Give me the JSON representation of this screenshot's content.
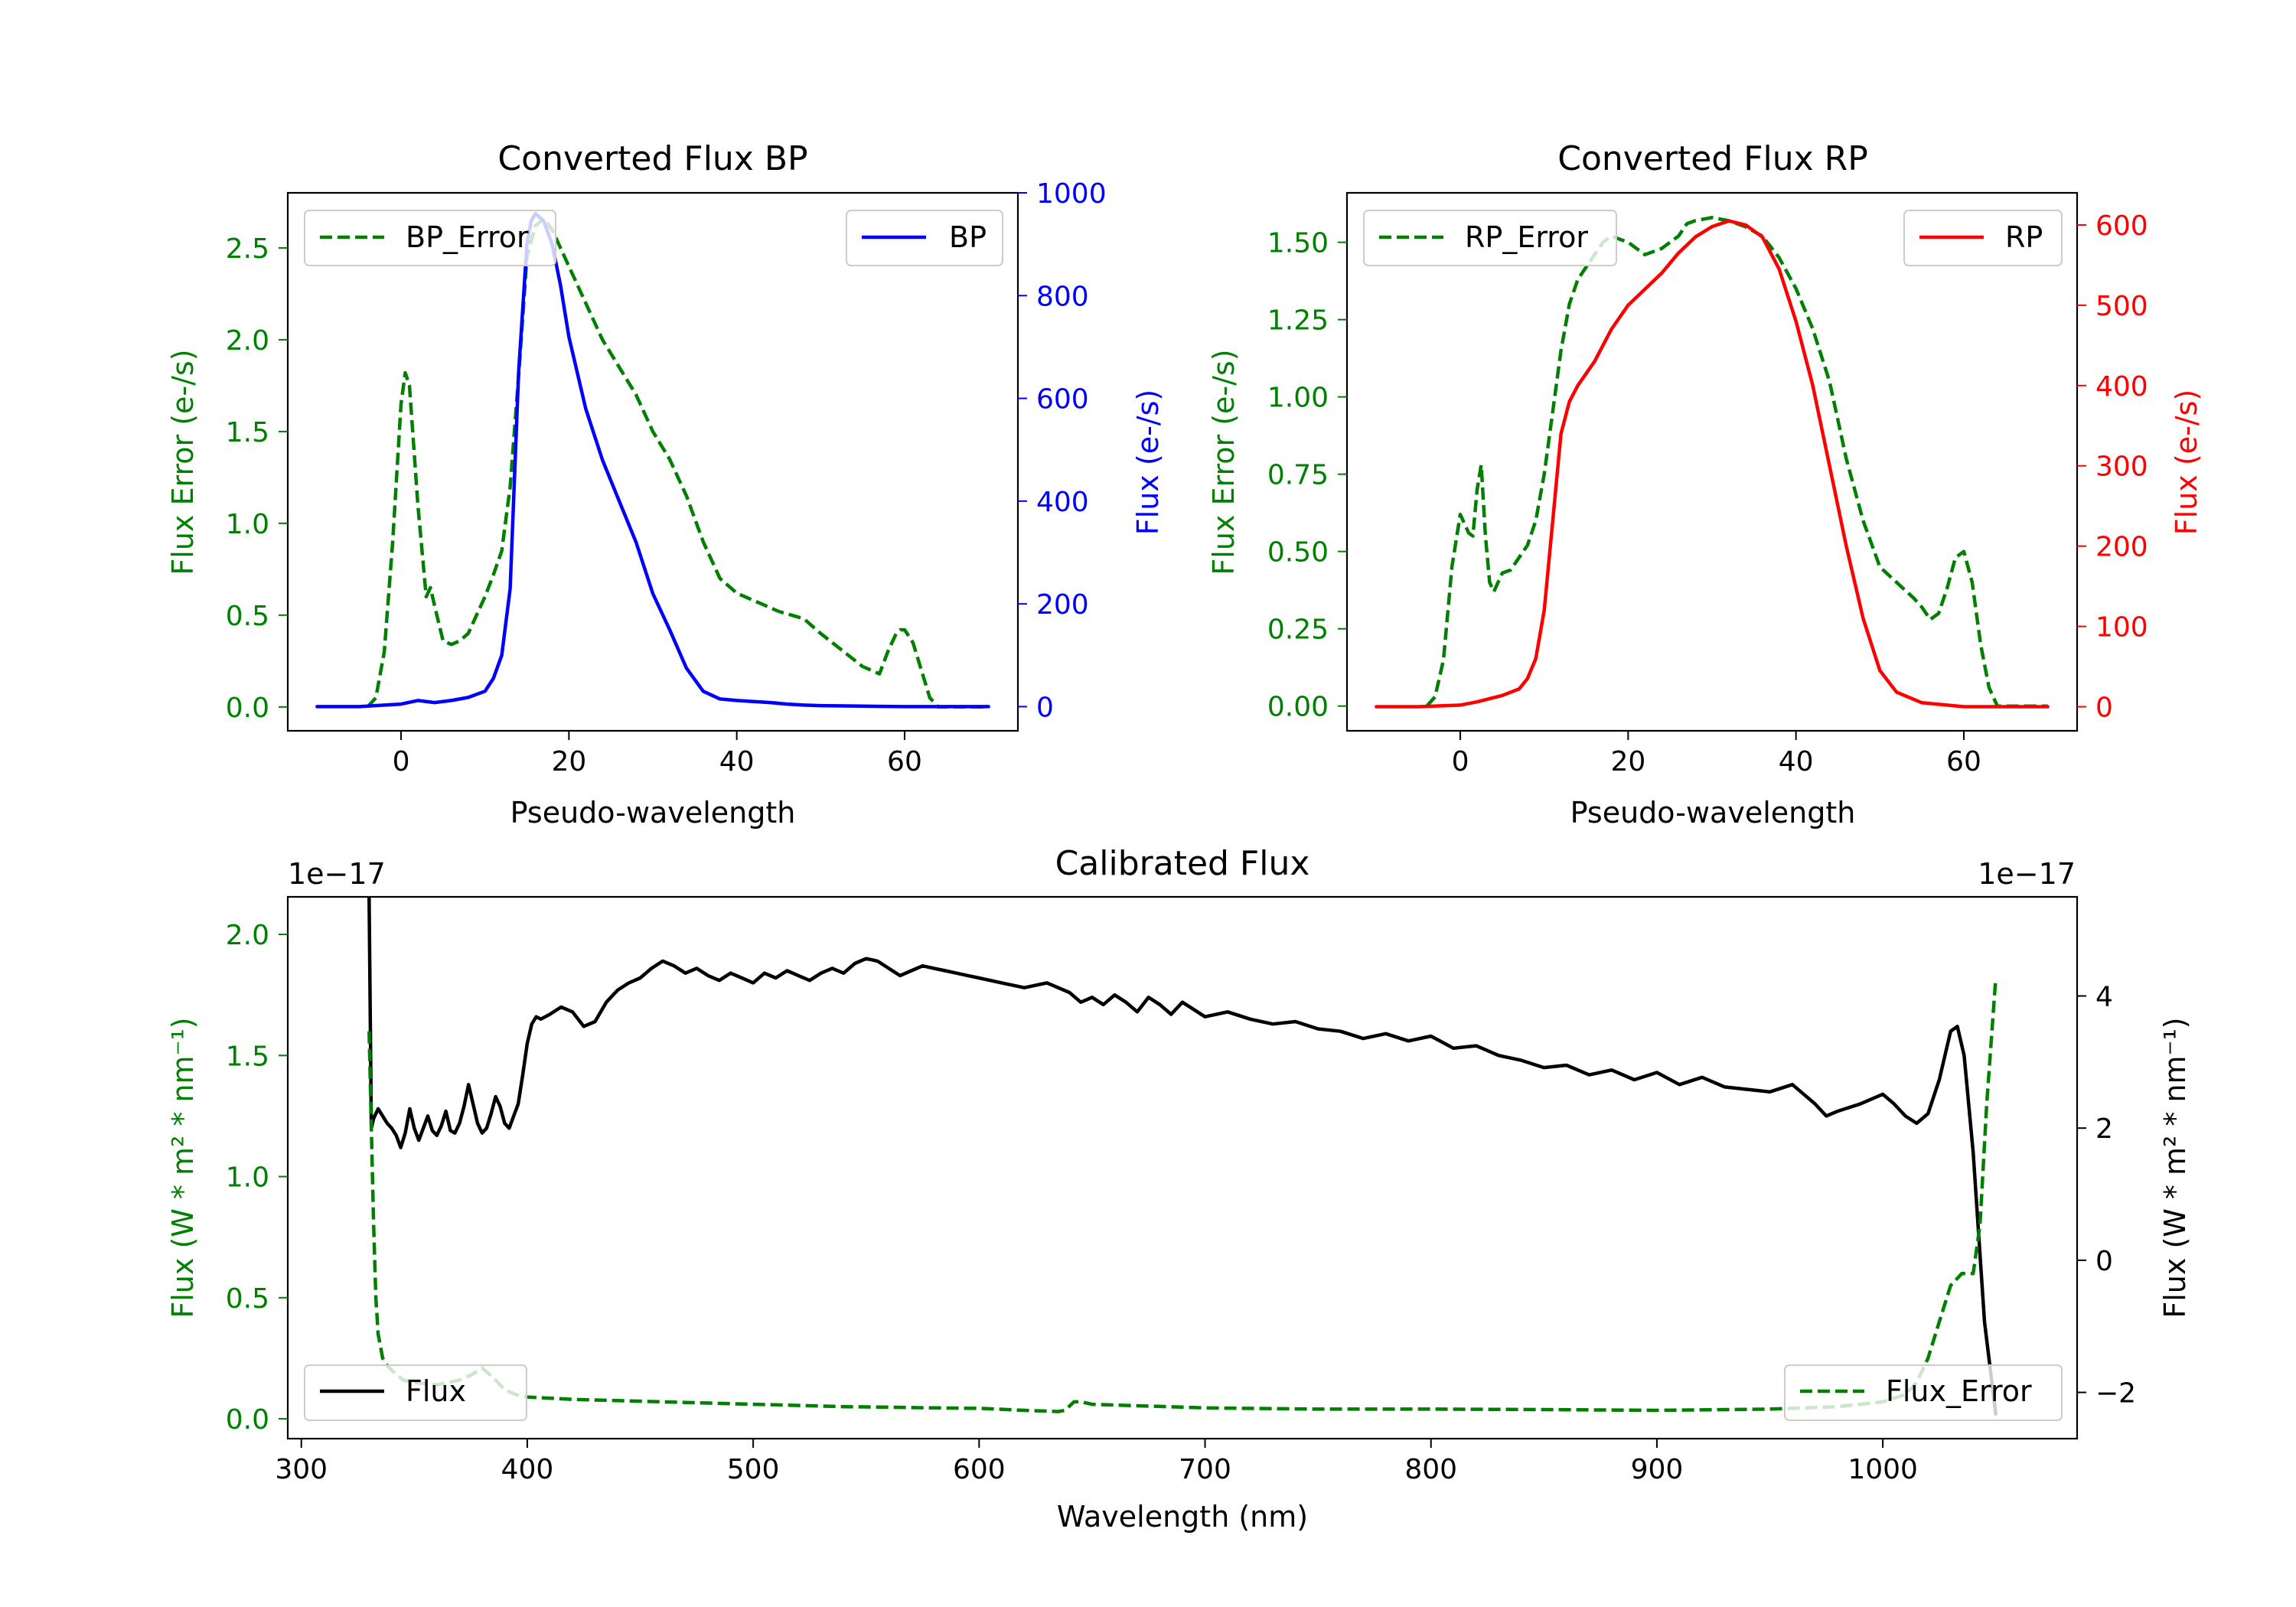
{
  "chart_data": [
    {
      "type": "line",
      "title": "Converted Flux BP",
      "xlabel": "Pseudo-wavelength",
      "ylabel_left": "Flux Error (e-/s)",
      "ylabel_right": "Flux (e-/s)",
      "xlim": [
        -13.5,
        73.5
      ],
      "ylim_left": [
        -0.13,
        2.8
      ],
      "ylim_right": [
        -47,
        1000
      ],
      "x_ticks": [
        0,
        20,
        40,
        60
      ],
      "y_left_ticks": [
        0.0,
        0.5,
        1.0,
        1.5,
        2.0,
        2.5
      ],
      "y_right_ticks": [
        0,
        200,
        400,
        600,
        800,
        1000
      ],
      "colors": {
        "left_axis": "#008000",
        "right_axis": "#0000ff",
        "frame": "#000000"
      },
      "series": [
        {
          "name": "BP_Error",
          "axis": "left",
          "style": "dashed",
          "color": "#008000",
          "x": [
            -4,
            -3,
            -2,
            -1,
            0,
            0.5,
            1,
            2,
            3,
            3.5,
            4,
            5,
            6,
            7,
            8,
            9,
            10,
            11,
            12,
            13,
            14,
            15,
            16,
            17,
            18,
            19,
            20,
            22,
            24,
            26,
            28,
            30,
            32,
            34,
            36,
            38,
            40,
            45,
            48,
            50,
            55,
            57,
            58,
            59,
            59.5,
            60,
            61,
            62,
            63,
            64,
            70
          ],
          "values": [
            0.0,
            0.05,
            0.3,
            0.9,
            1.65,
            1.82,
            1.75,
            1.1,
            0.6,
            0.65,
            0.55,
            0.36,
            0.34,
            0.36,
            0.4,
            0.5,
            0.6,
            0.72,
            0.85,
            1.2,
            1.8,
            2.45,
            2.62,
            2.66,
            2.6,
            2.5,
            2.4,
            2.2,
            2.0,
            1.85,
            1.7,
            1.5,
            1.35,
            1.15,
            0.9,
            0.7,
            0.62,
            0.52,
            0.48,
            0.4,
            0.22,
            0.18,
            0.3,
            0.4,
            0.42,
            0.42,
            0.35,
            0.2,
            0.05,
            0.0,
            0.0
          ]
        },
        {
          "name": "BP",
          "axis": "right",
          "style": "solid",
          "color": "#0000ff",
          "x": [
            -10,
            -5,
            0,
            2,
            4,
            6,
            8,
            10,
            11,
            12,
            13,
            14,
            15,
            15.5,
            16,
            17,
            18,
            19,
            20,
            21,
            22,
            24,
            26,
            28,
            30,
            32,
            34,
            36,
            38,
            40,
            42,
            44,
            46,
            48,
            50,
            55,
            60,
            65,
            70
          ],
          "values": [
            0,
            0,
            5,
            12,
            8,
            12,
            18,
            30,
            55,
            100,
            230,
            650,
            900,
            945,
            960,
            945,
            900,
            820,
            720,
            650,
            580,
            480,
            400,
            320,
            220,
            150,
            75,
            30,
            15,
            12,
            10,
            8,
            5,
            3,
            2,
            1,
            0,
            0,
            0
          ]
        }
      ],
      "legend": [
        {
          "label": "BP_Error",
          "placement": "upper-left"
        },
        {
          "label": "BP",
          "placement": "upper-right"
        }
      ]
    },
    {
      "type": "line",
      "title": "Converted Flux RP",
      "xlabel": "Pseudo-wavelength",
      "ylabel_left": "Flux Error (e-/s)",
      "ylabel_right": "Flux (e-/s)",
      "xlim": [
        -13.5,
        73.5
      ],
      "ylim_left": [
        -0.08,
        1.66
      ],
      "ylim_right": [
        -30,
        640
      ],
      "x_ticks": [
        0,
        20,
        40,
        60
      ],
      "y_left_ticks": [
        0.0,
        0.25,
        0.5,
        0.75,
        1.0,
        1.25,
        1.5
      ],
      "y_right_ticks": [
        0,
        100,
        200,
        300,
        400,
        500,
        600
      ],
      "colors": {
        "left_axis": "#008000",
        "right_axis": "#ff0000",
        "frame": "#000000"
      },
      "series": [
        {
          "name": "RP_Error",
          "axis": "left",
          "style": "dashed",
          "color": "#008000",
          "x": [
            -4,
            -3,
            -2,
            -1,
            0,
            1,
            1.5,
            2,
            2.5,
            3,
            3.5,
            4,
            5,
            6,
            7,
            8,
            9,
            10,
            11,
            12,
            13,
            14,
            15,
            16,
            17,
            18,
            20,
            22,
            24,
            26,
            27,
            28,
            30,
            32,
            34,
            36,
            38,
            40,
            42,
            44,
            46,
            48,
            50,
            52,
            54,
            55,
            56,
            57,
            58,
            59,
            60,
            61,
            62,
            63,
            64,
            70
          ],
          "values": [
            0.0,
            0.03,
            0.15,
            0.45,
            0.62,
            0.56,
            0.55,
            0.7,
            0.78,
            0.55,
            0.4,
            0.37,
            0.43,
            0.44,
            0.48,
            0.52,
            0.6,
            0.75,
            0.95,
            1.15,
            1.3,
            1.38,
            1.42,
            1.46,
            1.5,
            1.52,
            1.5,
            1.46,
            1.48,
            1.52,
            1.56,
            1.57,
            1.58,
            1.57,
            1.55,
            1.52,
            1.45,
            1.35,
            1.22,
            1.05,
            0.8,
            0.6,
            0.45,
            0.4,
            0.35,
            0.32,
            0.28,
            0.3,
            0.38,
            0.48,
            0.5,
            0.4,
            0.2,
            0.06,
            0.0,
            0.0
          ]
        },
        {
          "name": "RP",
          "axis": "right",
          "style": "solid",
          "color": "#ff0000",
          "x": [
            -10,
            -5,
            0,
            2,
            5,
            7,
            8,
            9,
            10,
            11,
            12,
            13,
            14,
            16,
            18,
            20,
            22,
            24,
            26,
            28,
            30,
            32,
            34,
            36,
            38,
            40,
            42,
            44,
            46,
            48,
            50,
            52,
            55,
            60,
            65,
            70
          ],
          "values": [
            0,
            0,
            2,
            6,
            14,
            22,
            35,
            60,
            120,
            230,
            340,
            380,
            400,
            430,
            470,
            500,
            520,
            540,
            565,
            585,
            598,
            605,
            600,
            585,
            545,
            480,
            400,
            300,
            200,
            110,
            45,
            18,
            5,
            0,
            0,
            0
          ]
        }
      ],
      "legend": [
        {
          "label": "RP_Error",
          "placement": "upper-left"
        },
        {
          "label": "RP",
          "placement": "upper-right"
        }
      ]
    },
    {
      "type": "line",
      "title": "Calibrated Flux",
      "xlabel": "Wavelength (nm)",
      "ylabel_left": "Flux (W * m² * nm⁻¹)",
      "ylabel_right": "Flux (W * m² * nm⁻¹)",
      "offset_left": "1e−17",
      "offset_right": "1e−17",
      "xlim": [
        294,
        1086
      ],
      "ylim_left": [
        -0.082,
        2.155
      ],
      "ylim_right": [
        -2.7,
        5.5
      ],
      "x_ticks": [
        300,
        400,
        500,
        600,
        700,
        800,
        900,
        1000
      ],
      "y_left_ticks": [
        0.0,
        0.5,
        1.0,
        1.5,
        2.0
      ],
      "y_right_ticks": [
        -2,
        0,
        2,
        4
      ],
      "colors": {
        "left_axis": "#008000",
        "right_axis": "#000000",
        "frame": "#000000"
      },
      "series": [
        {
          "name": "Flux",
          "axis": "left",
          "style": "solid",
          "color": "#000000",
          "x": [
            330,
            331,
            332,
            334,
            336,
            338,
            340,
            342,
            344,
            346,
            348,
            350,
            352,
            354,
            356,
            358,
            360,
            362,
            364,
            366,
            368,
            370,
            372,
            374,
            376,
            378,
            380,
            382,
            384,
            386,
            388,
            390,
            392,
            394,
            396,
            398,
            400,
            402,
            404,
            406,
            410,
            415,
            420,
            425,
            430,
            435,
            440,
            445,
            450,
            455,
            460,
            465,
            470,
            475,
            480,
            485,
            490,
            495,
            500,
            505,
            510,
            515,
            520,
            525,
            530,
            535,
            540,
            545,
            550,
            555,
            560,
            565,
            570,
            575,
            580,
            585,
            590,
            595,
            600,
            610,
            620,
            630,
            640,
            645,
            650,
            655,
            660,
            665,
            670,
            675,
            680,
            685,
            690,
            695,
            700,
            710,
            720,
            730,
            740,
            750,
            760,
            770,
            780,
            790,
            800,
            810,
            820,
            830,
            840,
            850,
            860,
            870,
            880,
            890,
            900,
            910,
            920,
            930,
            940,
            950,
            960,
            970,
            975,
            980,
            990,
            1000,
            1005,
            1010,
            1015,
            1020,
            1025,
            1030,
            1033,
            1036,
            1040,
            1045,
            1050
          ],
          "values": [
            2.15,
            1.2,
            1.24,
            1.28,
            1.25,
            1.22,
            1.2,
            1.17,
            1.12,
            1.18,
            1.28,
            1.2,
            1.15,
            1.2,
            1.25,
            1.19,
            1.17,
            1.21,
            1.27,
            1.19,
            1.18,
            1.22,
            1.29,
            1.38,
            1.3,
            1.22,
            1.18,
            1.2,
            1.26,
            1.33,
            1.29,
            1.22,
            1.2,
            1.25,
            1.3,
            1.42,
            1.55,
            1.63,
            1.66,
            1.65,
            1.67,
            1.7,
            1.68,
            1.62,
            1.64,
            1.72,
            1.77,
            1.8,
            1.82,
            1.86,
            1.89,
            1.87,
            1.84,
            1.86,
            1.83,
            1.81,
            1.84,
            1.82,
            1.8,
            1.84,
            1.82,
            1.85,
            1.83,
            1.81,
            1.84,
            1.86,
            1.84,
            1.88,
            1.9,
            1.89,
            1.86,
            1.83,
            1.85,
            1.87,
            1.86,
            1.85,
            1.84,
            1.83,
            1.82,
            1.8,
            1.78,
            1.8,
            1.76,
            1.72,
            1.74,
            1.71,
            1.75,
            1.72,
            1.68,
            1.74,
            1.71,
            1.67,
            1.72,
            1.69,
            1.66,
            1.68,
            1.65,
            1.63,
            1.64,
            1.61,
            1.6,
            1.57,
            1.59,
            1.56,
            1.58,
            1.53,
            1.54,
            1.5,
            1.48,
            1.45,
            1.46,
            1.42,
            1.44,
            1.4,
            1.43,
            1.38,
            1.41,
            1.37,
            1.36,
            1.35,
            1.38,
            1.3,
            1.25,
            1.27,
            1.3,
            1.34,
            1.3,
            1.25,
            1.22,
            1.26,
            1.4,
            1.6,
            1.62,
            1.5,
            1.1,
            0.4,
            0.02
          ]
        },
        {
          "name": "Flux_Error",
          "axis": "left",
          "style": "dashed",
          "color": "#008000",
          "x": [
            330,
            331,
            332,
            333,
            334,
            336,
            338,
            340,
            345,
            350,
            360,
            370,
            375,
            380,
            385,
            390,
            395,
            400,
            420,
            440,
            460,
            480,
            500,
            520,
            540,
            560,
            580,
            600,
            620,
            635,
            638,
            642,
            645,
            650,
            700,
            750,
            800,
            850,
            900,
            950,
            980,
            1000,
            1010,
            1015,
            1020,
            1025,
            1030,
            1035,
            1040,
            1043,
            1046,
            1050
          ],
          "values": [
            1.6,
            1.2,
            0.8,
            0.5,
            0.35,
            0.25,
            0.22,
            0.2,
            0.16,
            0.15,
            0.14,
            0.16,
            0.18,
            0.21,
            0.17,
            0.12,
            0.1,
            0.09,
            0.08,
            0.075,
            0.07,
            0.065,
            0.06,
            0.055,
            0.05,
            0.048,
            0.045,
            0.043,
            0.035,
            0.03,
            0.035,
            0.07,
            0.07,
            0.06,
            0.045,
            0.04,
            0.04,
            0.038,
            0.035,
            0.04,
            0.05,
            0.07,
            0.1,
            0.15,
            0.25,
            0.4,
            0.55,
            0.6,
            0.6,
            0.8,
            1.3,
            1.82
          ]
        }
      ],
      "legend": [
        {
          "label": "Flux",
          "placement": "lower-left"
        },
        {
          "label": "Flux_Error",
          "placement": "lower-right"
        }
      ]
    }
  ]
}
